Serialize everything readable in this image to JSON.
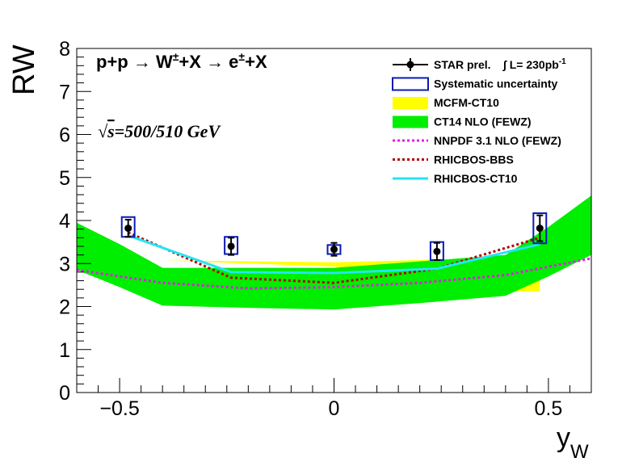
{
  "chart_data": {
    "type": "line",
    "ylabel": "RW",
    "xlabel_main": "y",
    "xlabel_sub": "W",
    "xlim": [
      -0.6,
      0.6
    ],
    "ylim": [
      0,
      8
    ],
    "x_ticks": [
      {
        "v": -0.5,
        "label": "−0.5"
      },
      {
        "v": 0,
        "label": "0"
      },
      {
        "v": 0.5,
        "label": "0.5"
      }
    ],
    "y_ticks": [
      0,
      1,
      2,
      3,
      4,
      5,
      6,
      7,
      8
    ],
    "reaction": {
      "part1": "p+p ",
      "arrow1": "→",
      "part2": " W",
      "sup2": "±",
      "part3": "+X ",
      "arrow2": "→",
      "part4": " e",
      "sup4": "±",
      "part5": "+X"
    },
    "energy": {
      "sqrt": "√",
      "s": "s",
      "rest": "=500/510 GeV"
    },
    "legend": [
      {
        "key": "star",
        "label": "STAR prel.",
        "extra": "∫ L= 230pb",
        "extra_sup": "-1",
        "color": "#000000",
        "style": "marker"
      },
      {
        "key": "sys",
        "label": "Systematic uncertainty",
        "color": "#0a1ab5",
        "style": "box"
      },
      {
        "key": "mcfm",
        "label": "MCFM-CT10",
        "color": "#ffff00",
        "style": "fill"
      },
      {
        "key": "ct14",
        "label": "CT14 NLO (FEWZ)",
        "color": "#00ee00",
        "style": "fill"
      },
      {
        "key": "nnpdf",
        "label": "NNPDF 3.1 NLO (FEWZ)",
        "color": "#e21ee2",
        "style": "dotted"
      },
      {
        "key": "bbs",
        "label": "RHICBOS-BBS",
        "color": "#b30000",
        "style": "dotted"
      },
      {
        "key": "ct10",
        "label": "RHICBOS-CT10",
        "color": "#22e6f2",
        "style": "solid"
      }
    ],
    "star_points": [
      {
        "x": -0.48,
        "y": 3.82,
        "err": 0.2,
        "sys_lo": 3.62,
        "sys_hi": 4.08,
        "sys_hw": 0.015
      },
      {
        "x": -0.24,
        "y": 3.4,
        "err": 0.2,
        "sys_lo": 3.22,
        "sys_hi": 3.62,
        "sys_hw": 0.015
      },
      {
        "x": 0.0,
        "y": 3.33,
        "err": 0.15,
        "sys_lo": 3.22,
        "sys_hi": 3.43,
        "sys_hw": 0.015
      },
      {
        "x": 0.24,
        "y": 3.28,
        "err": 0.2,
        "sys_lo": 3.08,
        "sys_hi": 3.5,
        "sys_hw": 0.015
      },
      {
        "x": 0.48,
        "y": 3.82,
        "err": 0.3,
        "sys_lo": 3.47,
        "sys_hi": 4.17,
        "sys_hw": 0.015
      }
    ],
    "mcfm_band": {
      "x": [
        -0.48,
        -0.4,
        0.0,
        0.4,
        0.48
      ],
      "lo": [
        3.07,
        3.07,
        2.93,
        2.35,
        2.35
      ],
      "hi": [
        3.07,
        3.07,
        3.03,
        3.13,
        3.13
      ]
    },
    "ct14_band": {
      "x": [
        -0.6,
        -0.5,
        -0.4,
        -0.2,
        0.0,
        0.2,
        0.4,
        0.5,
        0.6
      ],
      "lo": [
        2.85,
        2.45,
        2.02,
        1.97,
        1.93,
        2.08,
        2.25,
        2.7,
        3.2
      ],
      "hi": [
        3.95,
        3.45,
        2.9,
        2.9,
        2.9,
        3.05,
        3.2,
        3.85,
        4.58
      ]
    },
    "nnpdf_line": {
      "x": [
        -0.6,
        -0.4,
        -0.2,
        0.0,
        0.2,
        0.4,
        0.6
      ],
      "y": [
        2.85,
        2.55,
        2.42,
        2.45,
        2.55,
        2.73,
        3.12
      ]
    },
    "bbs_line": {
      "x": [
        -0.48,
        -0.24,
        0.0,
        0.24,
        0.48
      ],
      "y": [
        3.72,
        2.67,
        2.55,
        2.88,
        3.6
      ]
    },
    "ct10_line": {
      "x": [
        -0.48,
        -0.24,
        0.0,
        0.24,
        0.48
      ],
      "y": [
        3.65,
        2.8,
        2.78,
        2.88,
        3.45
      ]
    }
  }
}
